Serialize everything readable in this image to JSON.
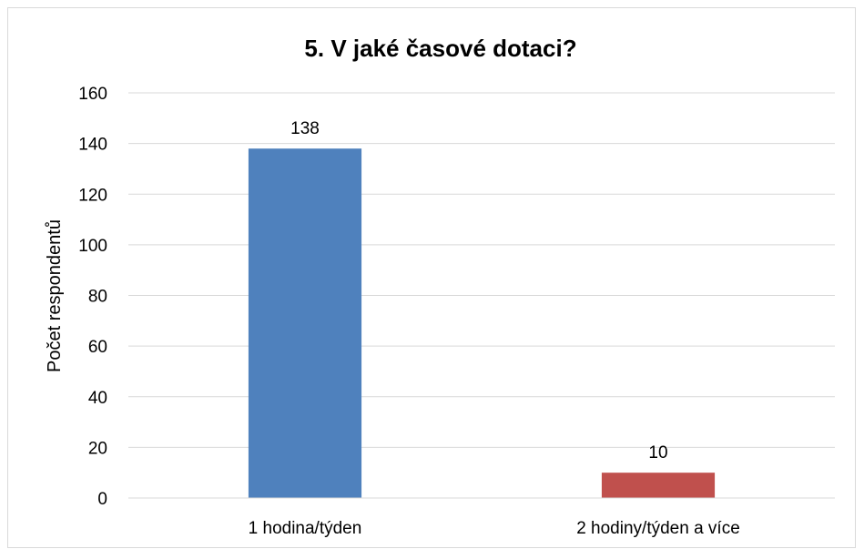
{
  "chart_data": {
    "type": "bar",
    "title": "5. V jaké časové dotaci?",
    "xlabel": "",
    "ylabel": "Počet respondentů",
    "categories": [
      "1 hodina/týden",
      "2 hodiny/týden a více"
    ],
    "values": [
      138,
      10
    ],
    "bar_colors": [
      "#4f81bd",
      "#c0504d"
    ],
    "ylim": [
      0,
      160
    ],
    "yticks": [
      0,
      20,
      40,
      60,
      80,
      100,
      120,
      140,
      160
    ],
    "grid": true,
    "legend": "none",
    "data_labels": true
  }
}
